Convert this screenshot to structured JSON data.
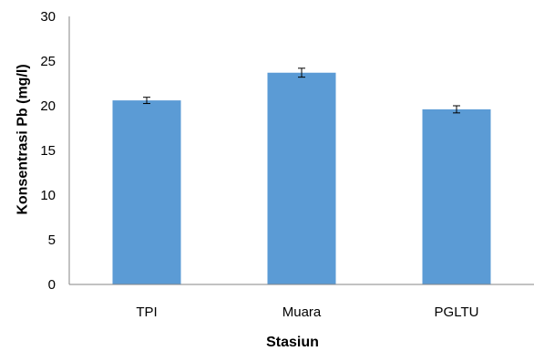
{
  "chart_data": {
    "type": "bar",
    "title": "",
    "xlabel": "Stasiun",
    "ylabel": "Konsentrasi Pb (mg/l)",
    "categories": [
      "TPI",
      "Muara",
      "PGLTU"
    ],
    "values": [
      20.6,
      23.7,
      19.6
    ],
    "error": [
      0.35,
      0.5,
      0.4
    ],
    "ylim": [
      0,
      30
    ],
    "yticks": [
      "0",
      "5",
      "10",
      "15",
      "20",
      "25",
      "30"
    ],
    "grid": false,
    "legend": "none",
    "bar_color": "#5b9bd5",
    "error_bar_color": "#000000"
  }
}
